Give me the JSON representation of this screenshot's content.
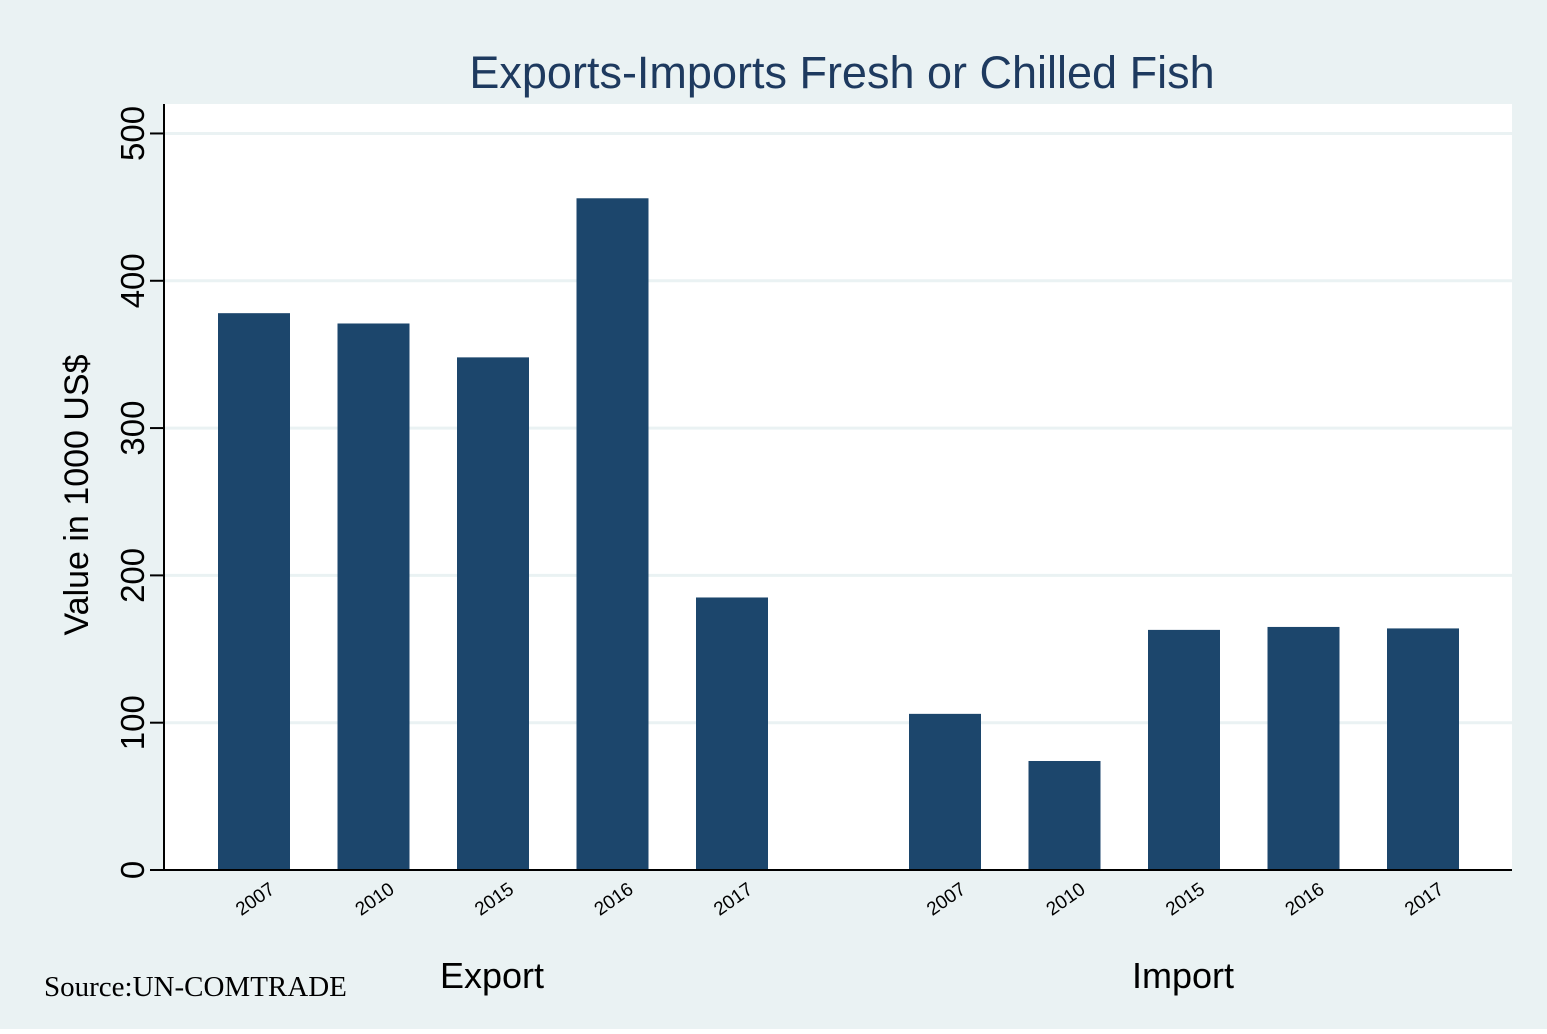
{
  "chart_data": {
    "type": "bar",
    "title": "Exports-Imports Fresh or Chilled Fish",
    "ylabel": "Value in 1000 US$",
    "ylim": [
      0,
      520
    ],
    "yticks": [
      0,
      100,
      200,
      300,
      400,
      500
    ],
    "grid": true,
    "groups": [
      {
        "name": "Export",
        "categories": [
          "2007",
          "2010",
          "2015",
          "2016",
          "2017"
        ],
        "values": [
          378,
          371,
          348,
          456,
          185
        ]
      },
      {
        "name": "Import",
        "categories": [
          "2007",
          "2010",
          "2015",
          "2016",
          "2017"
        ],
        "values": [
          106,
          74,
          163,
          165,
          164
        ]
      }
    ],
    "source_note": "Source:UN-COMTRADE",
    "colors": {
      "bar": "#1c466c",
      "background": "#eaf2f3",
      "plot_background": "#ffffff",
      "grid": "#eaf2f3",
      "title": "#1e3a5f",
      "text": "#000000"
    }
  }
}
